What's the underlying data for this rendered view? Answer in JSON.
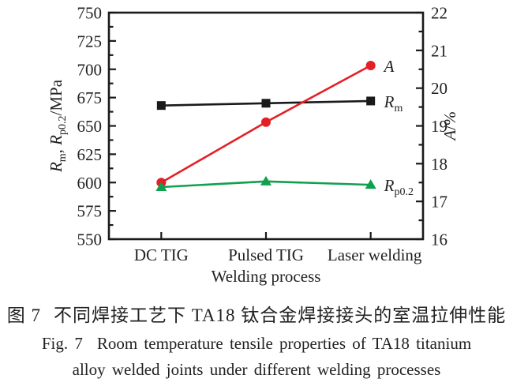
{
  "figure": {
    "caption_zh": {
      "label": "图 7",
      "text": "不同焊接工艺下 TA18 钛合金焊接接头的室温拉伸性能"
    },
    "caption_en_line1": {
      "label": "Fig. 7",
      "text": "Room temperature tensile properties of TA18 titanium"
    },
    "caption_en_line2": "alloy welded joints under different welding processes"
  },
  "colors": {
    "axis": "#1a1a1a",
    "text": "#222222",
    "rm_black": "#1a1a1a",
    "a_red": "#e42026",
    "rp02_green": "#10a04e",
    "background": "#ffffff"
  },
  "chart_data": {
    "type": "line",
    "categories": [
      "DC TIG",
      "Pulsed TIG",
      "Laser welding"
    ],
    "xlabel": "Welding process",
    "grid": false,
    "legend_position": "labels-right-of-last-point",
    "axes": {
      "left": {
        "label_plain": "Rm, Rp0.2/MPa",
        "label_parts": [
          {
            "t": "R",
            "i": 1
          },
          {
            "t": "m",
            "s": 1
          },
          {
            "t": ", "
          },
          {
            "t": "R",
            "i": 1
          },
          {
            "t": "p0.2",
            "s": 1
          },
          {
            "t": "/MPa"
          }
        ],
        "min": 550,
        "max": 750,
        "major": 25,
        "minor": 12.5,
        "tick_labels": [
          "550",
          "575",
          "600",
          "625",
          "650",
          "675",
          "700",
          "725",
          "750"
        ]
      },
      "right": {
        "label_plain": "A/%",
        "label_parts": [
          {
            "t": "A",
            "i": 1
          },
          {
            "t": "/%"
          }
        ],
        "min": 16,
        "max": 22,
        "major": 1,
        "minor": 0.5,
        "tick_labels": [
          "16",
          "17",
          "18",
          "19",
          "20",
          "21",
          "22"
        ]
      }
    },
    "series": [
      {
        "name": "Rm",
        "label_plain": "Rm",
        "label_parts": [
          {
            "t": "R",
            "i": 1
          },
          {
            "t": "m",
            "s": 1
          }
        ],
        "axis": "left",
        "marker": "square",
        "color": "#1a1a1a",
        "values": [
          668,
          670,
          672
        ]
      },
      {
        "name": "A",
        "label_plain": "A",
        "label_parts": [
          {
            "t": "A",
            "i": 1
          }
        ],
        "axis": "right",
        "marker": "circle",
        "color": "#e42026",
        "values": [
          17.5,
          19.1,
          20.6
        ]
      },
      {
        "name": "Rp0.2",
        "label_plain": "Rp0.2",
        "label_parts": [
          {
            "t": "R",
            "i": 1
          },
          {
            "t": "p0.2",
            "s": 1
          }
        ],
        "axis": "left",
        "marker": "triangle",
        "color": "#10a04e",
        "values": [
          596,
          601,
          598
        ]
      }
    ]
  }
}
